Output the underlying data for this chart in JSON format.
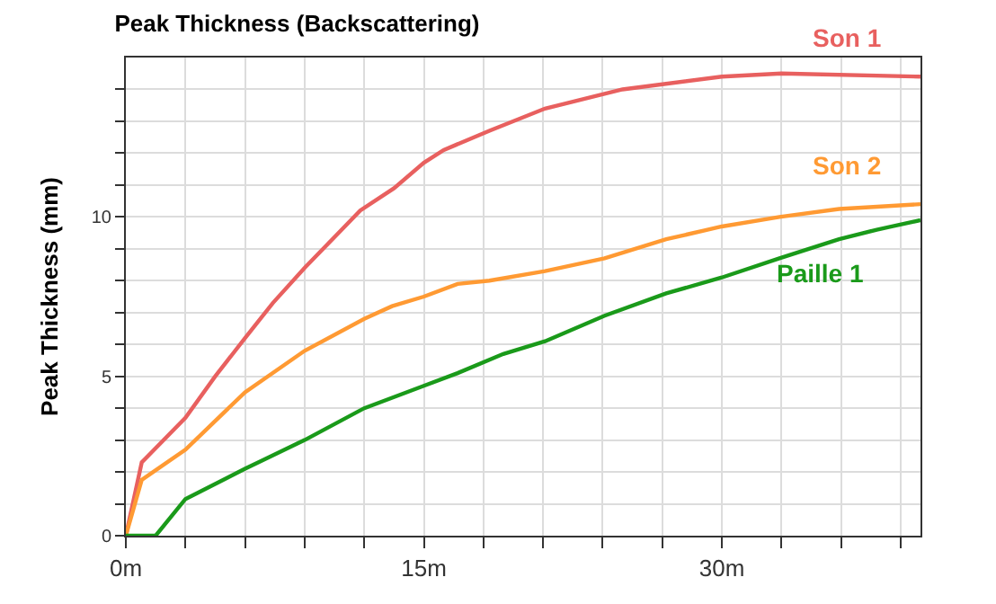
{
  "chart_data": {
    "type": "line",
    "title": "Peak Thickness (Backscattering)",
    "ylabel": "Peak Thickness (mm)",
    "xlim": [
      0,
      40
    ],
    "ylim": [
      0,
      15
    ],
    "xticks": [
      {
        "value": 0,
        "label": "0m"
      },
      {
        "value": 3,
        "label": null
      },
      {
        "value": 6,
        "label": null
      },
      {
        "value": 9,
        "label": null
      },
      {
        "value": 12,
        "label": null
      },
      {
        "value": 15,
        "label": "15m"
      },
      {
        "value": 18,
        "label": null
      },
      {
        "value": 21,
        "label": null
      },
      {
        "value": 24,
        "label": null
      },
      {
        "value": 27,
        "label": null
      },
      {
        "value": 30,
        "label": "30m"
      },
      {
        "value": 33,
        "label": null
      },
      {
        "value": 36,
        "label": null
      },
      {
        "value": 39,
        "label": null
      }
    ],
    "yticks": [
      0,
      {
        "value": 1,
        "label": null
      },
      {
        "value": 2,
        "label": null
      },
      {
        "value": 3,
        "label": null
      },
      {
        "value": 4,
        "label": null
      },
      5,
      {
        "value": 6,
        "label": null
      },
      {
        "value": 7,
        "label": null
      },
      {
        "value": 8,
        "label": null
      },
      {
        "value": 9,
        "label": null
      },
      10,
      {
        "value": 11,
        "label": null
      },
      {
        "value": 12,
        "label": null
      },
      {
        "value": 13,
        "label": null
      },
      {
        "value": 14,
        "label": null
      }
    ],
    "grid": true,
    "legend": false,
    "marker": "none",
    "line_style": "solid",
    "series": [
      {
        "name": "Son 1",
        "color": "#e8605f",
        "x": [
          0,
          0.8,
          3,
          4.5,
          6,
          7.4,
          9,
          11.8,
          13.5,
          15,
          16,
          18.3,
          21.1,
          25,
          30,
          33,
          40
        ],
        "values": [
          0,
          2.3,
          3.7,
          5.0,
          6.2,
          7.3,
          8.4,
          10.2,
          10.9,
          11.7,
          12.1,
          12.7,
          13.4,
          14.0,
          14.4,
          14.5,
          14.4
        ]
      },
      {
        "name": "Son 2",
        "color": "#ff9a33",
        "x": [
          0,
          0.8,
          3,
          6,
          9,
          12,
          13.4,
          15,
          16.7,
          18.3,
          21.1,
          24.1,
          27.2,
          30,
          32.9,
          35.9,
          40
        ],
        "values": [
          0,
          1.75,
          2.7,
          4.5,
          5.8,
          6.8,
          7.2,
          7.5,
          7.9,
          8.0,
          8.3,
          8.7,
          9.3,
          9.7,
          10.0,
          10.25,
          10.4
        ]
      },
      {
        "name": "Paille 1",
        "color": "#1a9a1a",
        "x": [
          0,
          1.5,
          3,
          6,
          9,
          12,
          15,
          16.7,
          19,
          21.1,
          24.1,
          27.2,
          30,
          32.9,
          35.9,
          37.8,
          40
        ],
        "values": [
          0,
          0,
          1.15,
          2.1,
          3.0,
          4.0,
          4.7,
          5.1,
          5.7,
          6.1,
          6.9,
          7.6,
          8.1,
          8.7,
          9.3,
          9.6,
          9.9
        ]
      }
    ]
  }
}
